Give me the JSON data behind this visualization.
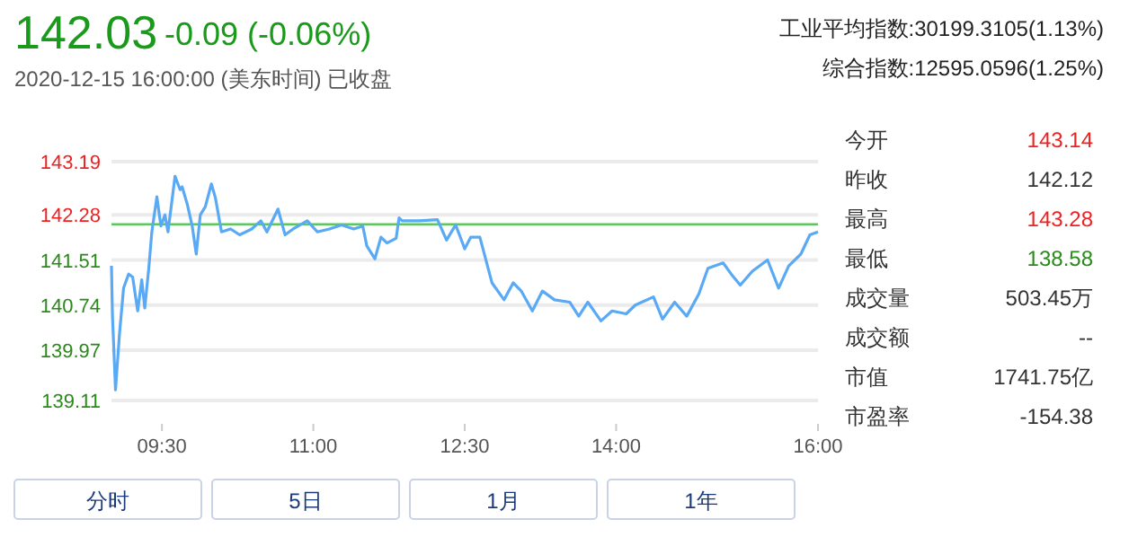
{
  "chart_data": {
    "type": "line",
    "title": "142.03",
    "subtitle": "-0.09 (-0.06%)",
    "annotations": [
      "2020-12-15 16:00:00 (美东时间) 已收盘",
      "工业平均指数:30199.3105(1.13%)",
      "综合指数:12595.0596(1.25%)",
      "今开",
      "143.14",
      "昨收",
      "142.12",
      "最高",
      "143.28",
      "最低",
      "138.58",
      "成交量",
      "503.45万",
      "成交额",
      "--",
      "市值",
      "1741.75亿",
      "市盈率",
      "-154.38",
      "分时",
      "5日",
      "1月",
      "1年"
    ],
    "series": [
      {
        "color": "#5aa9f5",
        "x": [
          9.0,
          9.01,
          9.04,
          9.08,
          9.12,
          9.17,
          9.21,
          9.26,
          9.3,
          9.33,
          9.37,
          9.4,
          9.45,
          9.49,
          9.53,
          9.56,
          9.63,
          9.68,
          9.7,
          9.75,
          9.8,
          9.84,
          9.88,
          9.93,
          9.99,
          10.03,
          10.09,
          10.18,
          10.27,
          10.39,
          10.48,
          10.54,
          10.65,
          10.72,
          10.8,
          10.94,
          11.04,
          11.16,
          11.28,
          11.4,
          11.49,
          11.53,
          11.61,
          11.67,
          11.73,
          11.82,
          11.85,
          11.88,
          12.05,
          12.23,
          12.32,
          12.41,
          12.5,
          12.56,
          12.65,
          12.77,
          12.89,
          12.98,
          13.06,
          13.17,
          13.27,
          13.39,
          13.54,
          13.63,
          13.72,
          13.85,
          13.96,
          14.1,
          14.19,
          14.37,
          14.46,
          14.58,
          14.7,
          14.82,
          14.91,
          15.06,
          15.14,
          15.23,
          15.35,
          15.5,
          15.61,
          15.71,
          15.83,
          15.92,
          16.0
        ],
        "values": [
          141.41,
          140.55,
          139.29,
          140.26,
          141.03,
          141.27,
          141.22,
          140.64,
          141.17,
          140.69,
          141.37,
          141.99,
          142.59,
          142.09,
          142.28,
          141.99,
          142.94,
          142.71,
          142.76,
          142.47,
          142.09,
          141.61,
          142.28,
          142.42,
          142.81,
          142.57,
          141.99,
          142.04,
          141.94,
          142.04,
          142.18,
          141.99,
          142.38,
          141.94,
          142.04,
          142.18,
          141.99,
          142.04,
          142.11,
          142.04,
          142.09,
          141.75,
          141.53,
          141.9,
          141.8,
          141.88,
          142.23,
          142.18,
          142.18,
          142.2,
          141.85,
          142.11,
          141.7,
          141.9,
          141.9,
          141.12,
          140.83,
          141.12,
          140.98,
          140.64,
          140.98,
          140.83,
          140.79,
          140.55,
          140.79,
          140.47,
          140.64,
          140.59,
          140.74,
          140.88,
          140.5,
          140.79,
          140.55,
          140.93,
          141.37,
          141.46,
          141.27,
          141.08,
          141.32,
          141.51,
          141.03,
          141.41,
          141.61,
          141.94,
          141.99
        ]
      }
    ],
    "xlim": [
      9.0,
      16.0
    ],
    "xticks": [
      {
        "value": 9.5,
        "label": "09:30"
      },
      {
        "value": 11,
        "label": "11:00"
      },
      {
        "value": 12.5,
        "label": "12:30"
      },
      {
        "value": 14,
        "label": "14:00"
      },
      {
        "value": 16,
        "label": "16:00"
      }
    ],
    "ylim": [
      139.11,
      143.19
    ],
    "yticks": [
      139.11,
      139.97,
      140.74,
      141.51,
      142.28,
      143.19
    ],
    "ref_lines": [
      {
        "axis": "y",
        "value": 142.12,
        "color": "#5cc85c"
      }
    ],
    "grid": "y",
    "marker": "none",
    "line_style": "solid"
  }
}
